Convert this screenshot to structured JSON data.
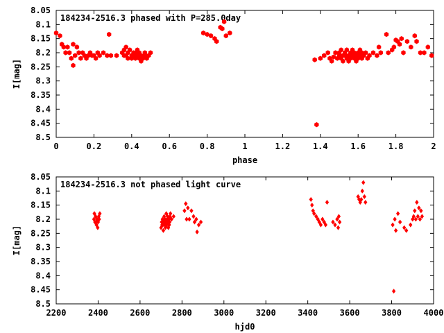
{
  "colors": {
    "points": "#ff0000",
    "axes": "#000000",
    "background": "#ffffff"
  },
  "chart_data": [
    {
      "type": "scatter",
      "title": "184234-2516.3 phased with P=285.0day",
      "xlabel": "phase",
      "ylabel": "I[mag]",
      "xlim": [
        0,
        2
      ],
      "ylim": [
        8.05,
        8.5
      ],
      "y_inverted": true,
      "grid": false,
      "marker": "filled hexagon",
      "x_ticks": [
        "0",
        "0.2",
        "0.4",
        "0.6",
        "0.8",
        "1",
        "1.2",
        "1.4",
        "1.6",
        "1.8",
        "2"
      ],
      "y_ticks": [
        "8.05",
        "8.1",
        "8.15",
        "8.2",
        "8.25",
        "8.3",
        "8.35",
        "8.4",
        "8.45",
        "8.5"
      ],
      "series": [
        {
          "points": [
            [
              0.0,
              8.13
            ],
            [
              0.02,
              8.14
            ],
            [
              0.03,
              8.17
            ],
            [
              0.04,
              8.18
            ],
            [
              0.05,
              8.2
            ],
            [
              0.06,
              8.18
            ],
            [
              0.07,
              8.2
            ],
            [
              0.08,
              8.22
            ],
            [
              0.09,
              8.245
            ],
            [
              0.09,
              8.17
            ],
            [
              0.1,
              8.21
            ],
            [
              0.11,
              8.18
            ],
            [
              0.12,
              8.2
            ],
            [
              0.13,
              8.22
            ],
            [
              0.14,
              8.2
            ],
            [
              0.15,
              8.21
            ],
            [
              0.16,
              8.22
            ],
            [
              0.17,
              8.21
            ],
            [
              0.18,
              8.2
            ],
            [
              0.19,
              8.21
            ],
            [
              0.2,
              8.21
            ],
            [
              0.21,
              8.22
            ],
            [
              0.22,
              8.2
            ],
            [
              0.23,
              8.21
            ],
            [
              0.25,
              8.2
            ],
            [
              0.27,
              8.21
            ],
            [
              0.28,
              8.135
            ],
            [
              0.29,
              8.21
            ],
            [
              0.32,
              8.21
            ],
            [
              0.35,
              8.2
            ],
            [
              0.36,
              8.21
            ],
            [
              0.36,
              8.19
            ],
            [
              0.37,
              8.18
            ],
            [
              0.37,
              8.21
            ],
            [
              0.38,
              8.22
            ],
            [
              0.38,
              8.2
            ],
            [
              0.39,
              8.19
            ],
            [
              0.4,
              8.21
            ],
            [
              0.4,
              8.22
            ],
            [
              0.41,
              8.2
            ],
            [
              0.41,
              8.21
            ],
            [
              0.42,
              8.22
            ],
            [
              0.42,
              8.2
            ],
            [
              0.43,
              8.21
            ],
            [
              0.43,
              8.19
            ],
            [
              0.44,
              8.22
            ],
            [
              0.44,
              8.2
            ],
            [
              0.45,
              8.23
            ],
            [
              0.45,
              8.21
            ],
            [
              0.46,
              8.22
            ],
            [
              0.47,
              8.2
            ],
            [
              0.47,
              8.21
            ],
            [
              0.48,
              8.22
            ],
            [
              0.49,
              8.21
            ],
            [
              0.5,
              8.2
            ],
            [
              0.78,
              8.13
            ],
            [
              0.8,
              8.135
            ],
            [
              0.82,
              8.14
            ],
            [
              0.84,
              8.15
            ],
            [
              0.85,
              8.16
            ],
            [
              0.87,
              8.11
            ],
            [
              0.88,
              8.115
            ],
            [
              0.89,
              8.09
            ],
            [
              0.9,
              8.14
            ],
            [
              0.92,
              8.13
            ],
            [
              1.37,
              8.225
            ],
            [
              1.38,
              8.455
            ],
            [
              1.4,
              8.22
            ],
            [
              1.42,
              8.21
            ],
            [
              1.44,
              8.2
            ],
            [
              1.45,
              8.22
            ],
            [
              1.46,
              8.23
            ],
            [
              1.47,
              8.215
            ],
            [
              1.48,
              8.2
            ],
            [
              1.49,
              8.22
            ],
            [
              1.5,
              8.21
            ],
            [
              1.5,
              8.2
            ],
            [
              1.51,
              8.22
            ],
            [
              1.51,
              8.19
            ],
            [
              1.52,
              8.21
            ],
            [
              1.52,
              8.23
            ],
            [
              1.53,
              8.2
            ],
            [
              1.53,
              8.21
            ],
            [
              1.54,
              8.22
            ],
            [
              1.54,
              8.19
            ],
            [
              1.55,
              8.21
            ],
            [
              1.55,
              8.23
            ],
            [
              1.56,
              8.2
            ],
            [
              1.56,
              8.22
            ],
            [
              1.57,
              8.21
            ],
            [
              1.57,
              8.19
            ],
            [
              1.58,
              8.2
            ],
            [
              1.58,
              8.22
            ],
            [
              1.59,
              8.21
            ],
            [
              1.59,
              8.23
            ],
            [
              1.6,
              8.2
            ],
            [
              1.6,
              8.22
            ],
            [
              1.61,
              8.21
            ],
            [
              1.61,
              8.19
            ],
            [
              1.62,
              8.2
            ],
            [
              1.62,
              8.22
            ],
            [
              1.63,
              8.21
            ],
            [
              1.64,
              8.2
            ],
            [
              1.65,
              8.22
            ],
            [
              1.66,
              8.21
            ],
            [
              1.68,
              8.2
            ],
            [
              1.7,
              8.21
            ],
            [
              1.71,
              8.18
            ],
            [
              1.72,
              8.2
            ],
            [
              1.75,
              8.135
            ],
            [
              1.76,
              8.2
            ],
            [
              1.78,
              8.19
            ],
            [
              1.79,
              8.18
            ],
            [
              1.8,
              8.155
            ],
            [
              1.81,
              8.16
            ],
            [
              1.82,
              8.17
            ],
            [
              1.83,
              8.15
            ],
            [
              1.84,
              8.2
            ],
            [
              1.86,
              8.16
            ],
            [
              1.88,
              8.18
            ],
            [
              1.9,
              8.14
            ],
            [
              1.91,
              8.16
            ],
            [
              1.93,
              8.2
            ],
            [
              1.95,
              8.2
            ],
            [
              1.97,
              8.18
            ],
            [
              1.99,
              8.21
            ]
          ]
        }
      ]
    },
    {
      "type": "scatter",
      "title": "184234-2516.3 not phased light curve",
      "xlabel": "hjd0",
      "ylabel": "I[mag]",
      "xlim": [
        2200,
        4000
      ],
      "ylim": [
        8.05,
        8.5
      ],
      "y_inverted": true,
      "grid": false,
      "marker": "small filled diamond",
      "x_ticks": [
        "2200",
        "2400",
        "2600",
        "2800",
        "3000",
        "3200",
        "3400",
        "3600",
        "3800",
        "4000"
      ],
      "y_ticks": [
        "8.05",
        "8.1",
        "8.15",
        "8.2",
        "8.25",
        "8.3",
        "8.35",
        "8.4",
        "8.45",
        "8.5"
      ],
      "series": [
        {
          "points": [
            [
              2380,
              8.2
            ],
            [
              2382,
              8.18
            ],
            [
              2385,
              8.21
            ],
            [
              2388,
              8.19
            ],
            [
              2390,
              8.21
            ],
            [
              2392,
              8.22
            ],
            [
              2395,
              8.2
            ],
            [
              2398,
              8.23
            ],
            [
              2400,
              8.21
            ],
            [
              2403,
              8.19
            ],
            [
              2405,
              8.2
            ],
            [
              2408,
              8.18
            ],
            [
              2700,
              8.23
            ],
            [
              2703,
              8.21
            ],
            [
              2705,
              8.22
            ],
            [
              2707,
              8.2
            ],
            [
              2709,
              8.22
            ],
            [
              2711,
              8.24
            ],
            [
              2713,
              8.21
            ],
            [
              2715,
              8.19
            ],
            [
              2717,
              8.22
            ],
            [
              2719,
              8.2
            ],
            [
              2721,
              8.23
            ],
            [
              2723,
              8.21
            ],
            [
              2725,
              8.18
            ],
            [
              2727,
              8.22
            ],
            [
              2729,
              8.2
            ],
            [
              2731,
              8.19
            ],
            [
              2733,
              8.21
            ],
            [
              2735,
              8.23
            ],
            [
              2737,
              8.2
            ],
            [
              2739,
              8.22
            ],
            [
              2741,
              8.21
            ],
            [
              2743,
              8.19
            ],
            [
              2745,
              8.18
            ],
            [
              2750,
              8.2
            ],
            [
              2760,
              8.19
            ],
            [
              2812,
              8.17
            ],
            [
              2818,
              8.145
            ],
            [
              2822,
              8.2
            ],
            [
              2828,
              8.16
            ],
            [
              2835,
              8.2
            ],
            [
              2845,
              8.17
            ],
            [
              2855,
              8.19
            ],
            [
              2860,
              8.21
            ],
            [
              2868,
              8.2
            ],
            [
              2872,
              8.245
            ],
            [
              2880,
              8.22
            ],
            [
              2890,
              8.21
            ],
            [
              3415,
              8.13
            ],
            [
              3420,
              8.15
            ],
            [
              3425,
              8.17
            ],
            [
              3430,
              8.18
            ],
            [
              3440,
              8.19
            ],
            [
              3448,
              8.2
            ],
            [
              3455,
              8.21
            ],
            [
              3462,
              8.22
            ],
            [
              3470,
              8.2
            ],
            [
              3478,
              8.21
            ],
            [
              3485,
              8.22
            ],
            [
              3492,
              8.14
            ],
            [
              3520,
              8.21
            ],
            [
              3530,
              8.22
            ],
            [
              3540,
              8.2
            ],
            [
              3545,
              8.23
            ],
            [
              3548,
              8.19
            ],
            [
              3552,
              8.21
            ],
            [
              3640,
              8.12
            ],
            [
              3645,
              8.13
            ],
            [
              3650,
              8.14
            ],
            [
              3655,
              8.13
            ],
            [
              3660,
              8.1
            ],
            [
              3665,
              8.07
            ],
            [
              3670,
              8.12
            ],
            [
              3675,
              8.14
            ],
            [
              3805,
              8.22
            ],
            [
              3810,
              8.455
            ],
            [
              3815,
              8.2
            ],
            [
              3820,
              8.24
            ],
            [
              3830,
              8.18
            ],
            [
              3840,
              8.21
            ],
            [
              3860,
              8.23
            ],
            [
              3870,
              8.24
            ],
            [
              3890,
              8.22
            ],
            [
              3900,
              8.2
            ],
            [
              3905,
              8.19
            ],
            [
              3910,
              8.17
            ],
            [
              3915,
              8.2
            ],
            [
              3920,
              8.14
            ],
            [
              3925,
              8.19
            ],
            [
              3930,
              8.16
            ],
            [
              3935,
              8.2
            ],
            [
              3940,
              8.17
            ],
            [
              3945,
              8.19
            ]
          ]
        }
      ]
    }
  ]
}
